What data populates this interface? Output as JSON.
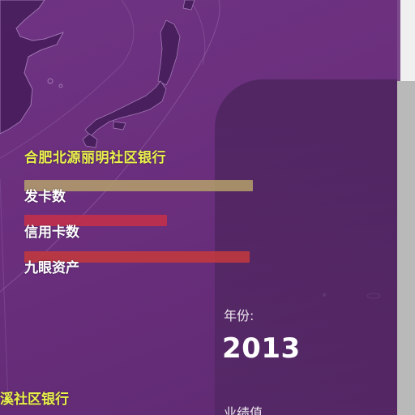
{
  "map": {
    "land_color": "#4a1f5e",
    "water_color": "#6e3382",
    "line_color": "#a378b5"
  },
  "panel": {
    "bank_name": "合肥北源丽明社区银行",
    "metrics": [
      {
        "label": "发卡数",
        "color": "#b4a06a",
        "level": 0.92
      },
      {
        "label": "信用卡数",
        "color": "#c2304a",
        "level": 0.58
      },
      {
        "label": "九眼资产",
        "color": "#c0383f",
        "level": 0.91
      }
    ]
  },
  "info": {
    "year_label": "年份:",
    "year_value": "2013",
    "metric_label": "业绩值"
  },
  "bottom": {
    "bank_name_partial": "溪社区银行"
  },
  "colors": {
    "bank_title": "#e8f24a",
    "text": "#ffffff",
    "background": "#6a2f7c"
  }
}
